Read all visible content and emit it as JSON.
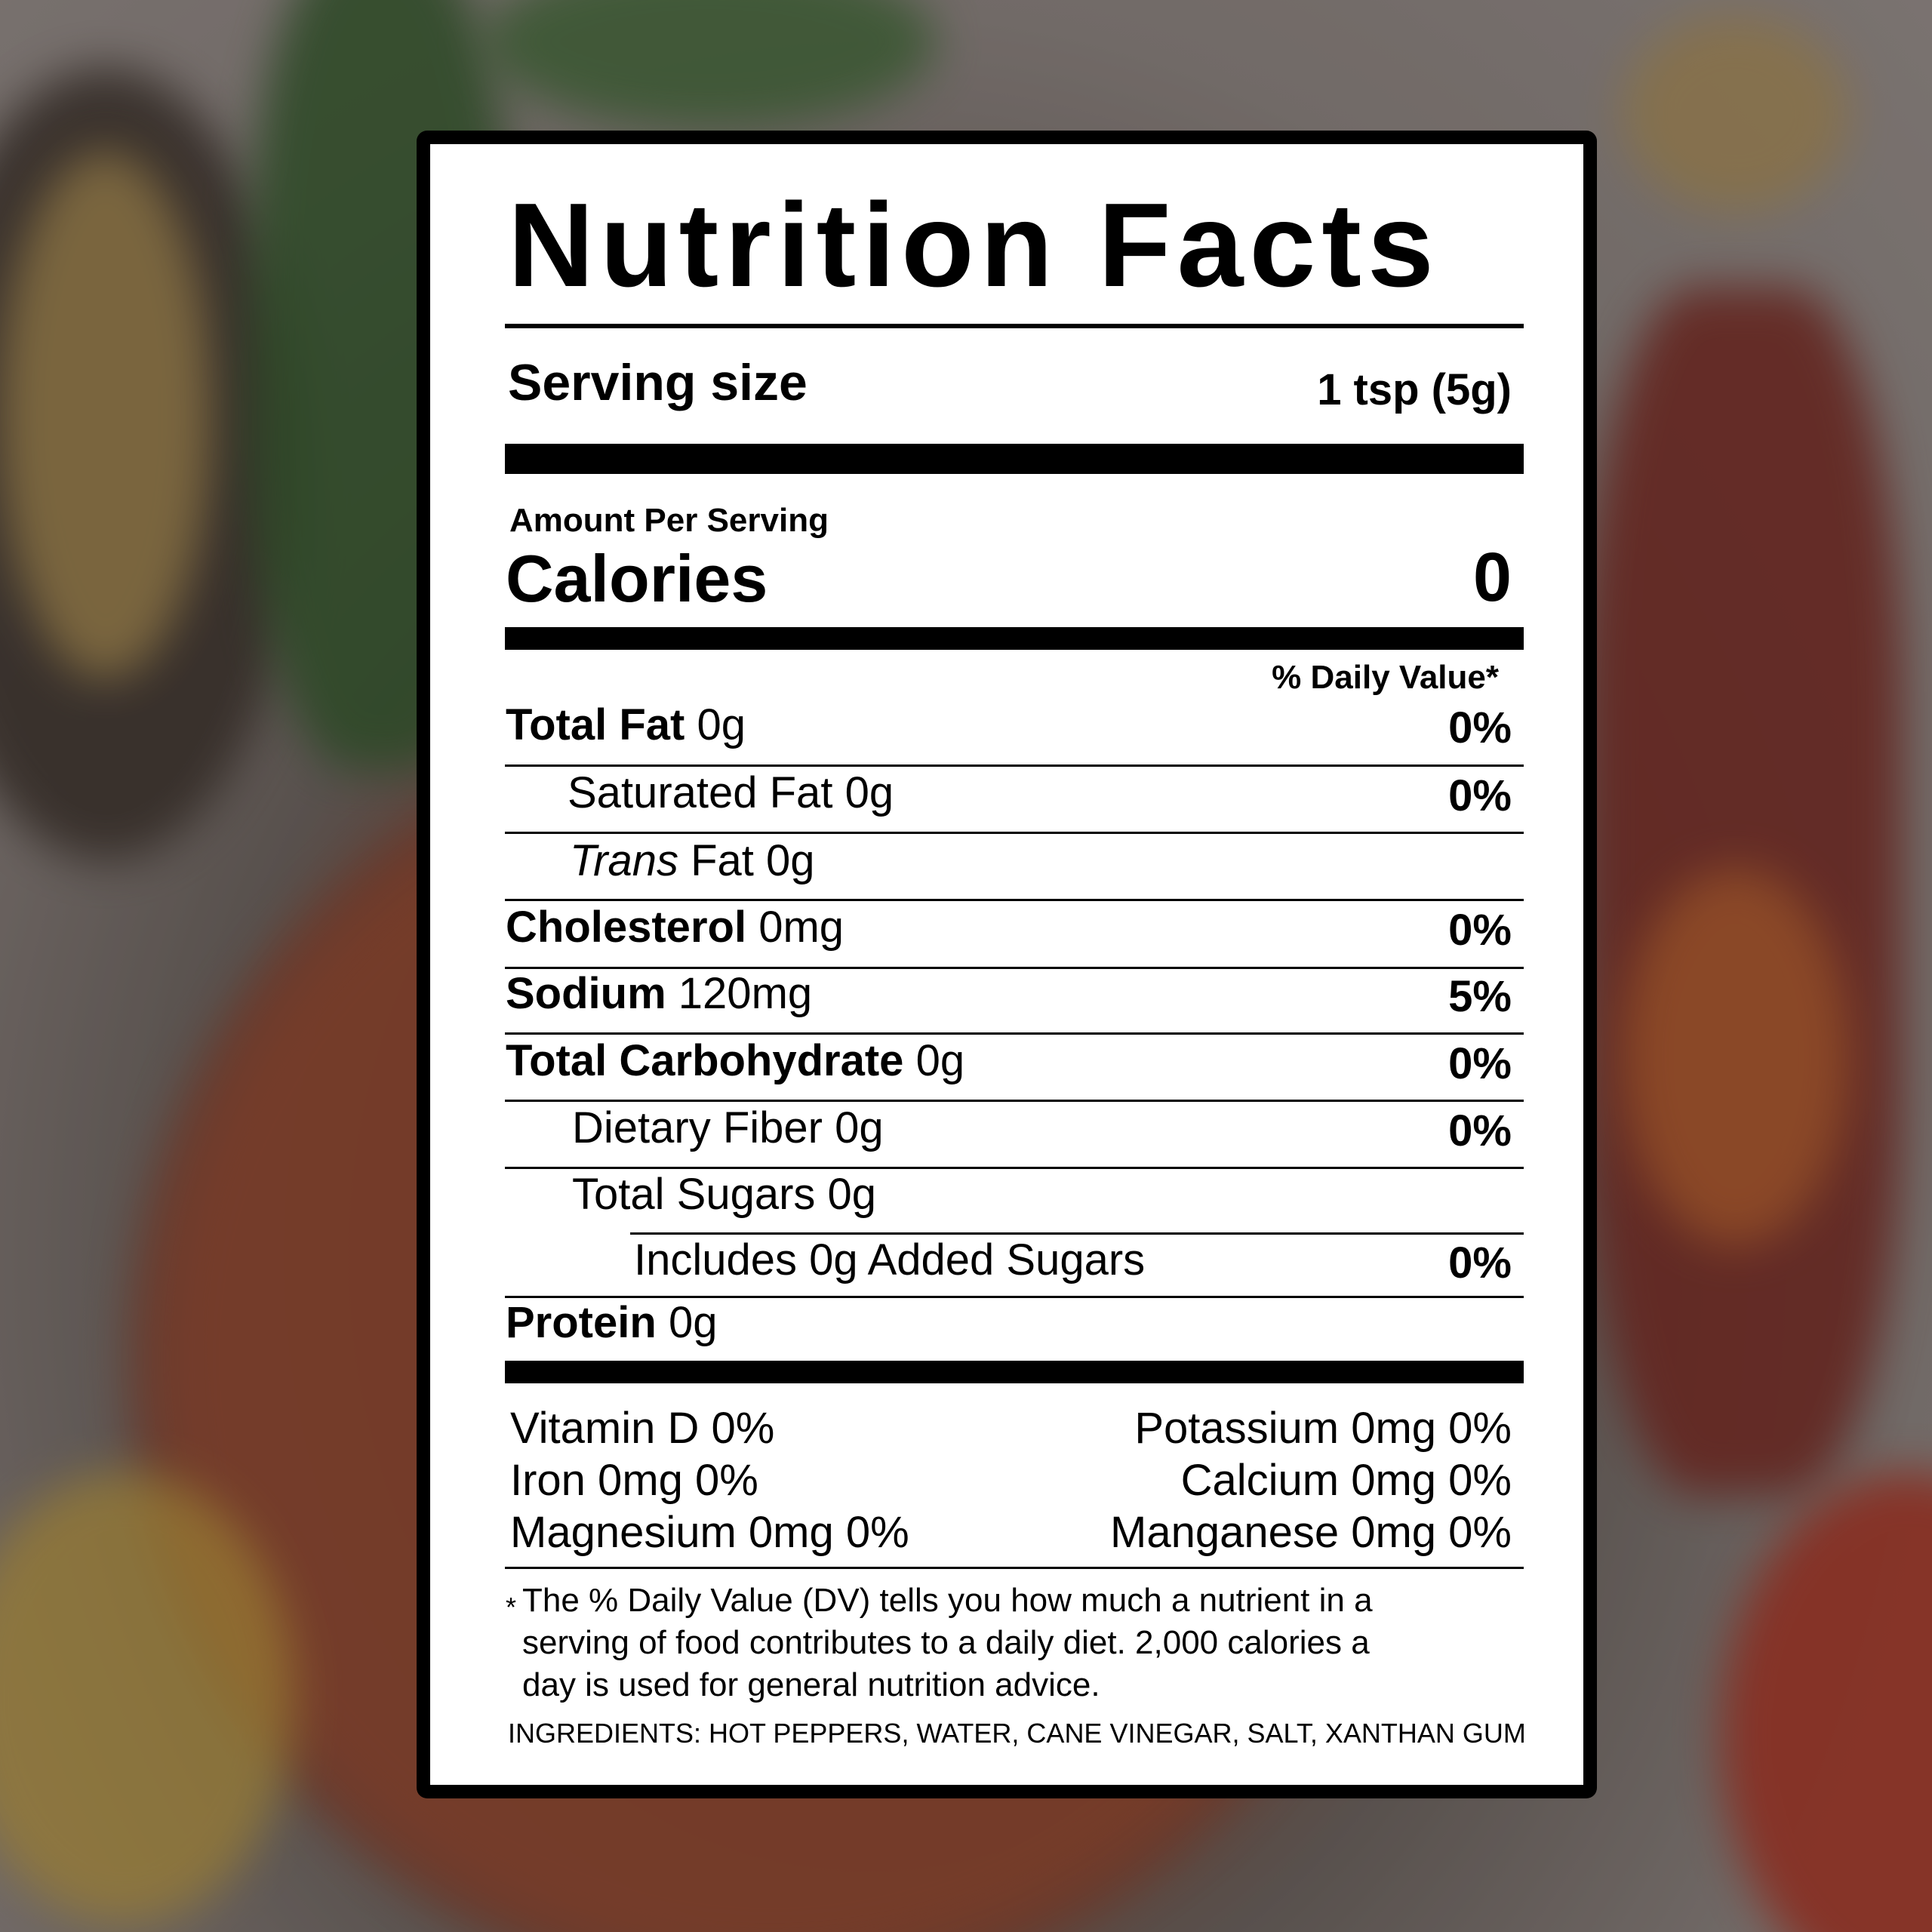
{
  "label": {
    "title": "Nutrition Facts",
    "serving_label": "Serving size",
    "serving_value": "1 tsp (5g)",
    "amount_per_serving": "Amount Per Serving",
    "calories_label": "Calories",
    "calories_value": "0",
    "dv_header": "% Daily Value*",
    "nutrients": [
      {
        "name": "Total Fat",
        "amount": "0g",
        "dv": "0%"
      },
      {
        "name": "Saturated Fat",
        "amount": "0g",
        "dv": "0%"
      },
      {
        "name": "Trans",
        "name_rest": "Fat",
        "amount": "0g",
        "dv": ""
      },
      {
        "name": "Cholesterol",
        "amount": "0mg",
        "dv": "0%"
      },
      {
        "name": "Sodium",
        "amount": "120mg",
        "dv": "5%"
      },
      {
        "name": "Total Carbohydrate",
        "amount": "0g",
        "dv": "0%"
      },
      {
        "name": "Dietary Fiber",
        "amount": "0g",
        "dv": "0%"
      },
      {
        "name": "Total Sugars",
        "amount": "0g",
        "dv": ""
      },
      {
        "name": "Includes 0g Added Sugars",
        "amount": "",
        "dv": "0%"
      },
      {
        "name": "Protein",
        "amount": "0g",
        "dv": ""
      }
    ],
    "vitamins": {
      "vitamin_d": "Vitamin D 0%",
      "potassium": "Potassium 0mg 0%",
      "iron": "Iron 0mg 0%",
      "calcium": "Calcium 0mg 0%",
      "magnesium": "Magnesium 0mg 0%",
      "manganese": "Manganese 0mg 0%"
    },
    "footnote_star": "*",
    "footnote": [
      "The % Daily Value (DV) tells you how much a nutrient in a",
      "serving of food contributes to a daily diet. 2,000 calories a",
      "day is used for general nutrition advice."
    ],
    "ingredients": "INGREDIENTS: HOT PEPPERS, WATER, CANE VINEGAR, SALT, XANTHAN GUM"
  }
}
